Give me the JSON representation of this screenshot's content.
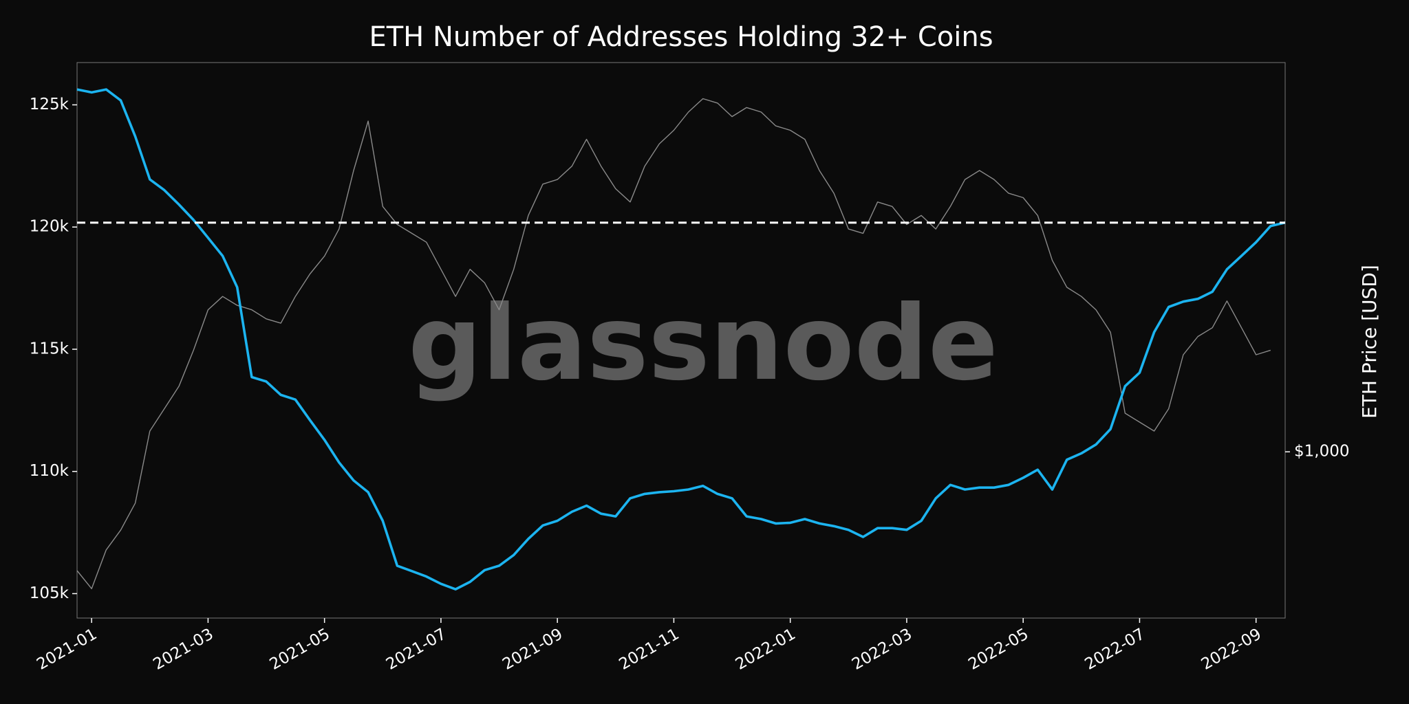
{
  "chart_data": {
    "type": "line",
    "title": "ETH Number of Addresses Holding 32+ Coins",
    "watermark": "glassnode",
    "y2_label": "ETH Price [USD]",
    "categories": [
      null,
      "2021-01",
      null,
      null,
      null,
      null,
      null,
      null,
      null,
      "2021-03",
      null,
      null,
      null,
      null,
      null,
      null,
      null,
      "2021-05",
      null,
      null,
      null,
      null,
      null,
      null,
      null,
      "2021-07",
      null,
      null,
      null,
      null,
      null,
      null,
      null,
      "2021-09",
      null,
      null,
      null,
      null,
      null,
      null,
      null,
      "2021-11",
      null,
      null,
      null,
      null,
      null,
      null,
      null,
      "2022-01",
      null,
      null,
      null,
      null,
      null,
      null,
      null,
      "2022-03",
      null,
      null,
      null,
      null,
      null,
      null,
      null,
      "2022-05",
      null,
      null,
      null,
      null,
      null,
      null,
      null,
      "2022-07",
      null,
      null,
      null,
      null,
      null,
      null,
      null,
      "2022-09",
      null,
      null
    ],
    "series": [
      {
        "name": "Addresses",
        "color": "#1cb4f0",
        "values": [
          125630,
          125510,
          125630,
          125180,
          123710,
          121950,
          121510,
          120920,
          120290,
          119560,
          118820,
          117540,
          113860,
          113680,
          113130,
          112940,
          112100,
          111290,
          110370,
          109630,
          109150,
          107980,
          106140,
          105920,
          105700,
          105400,
          105180,
          105480,
          105960,
          106140,
          106580,
          107240,
          107790,
          107980,
          108350,
          108600,
          108270,
          108160,
          108900,
          109080,
          109150,
          109190,
          109260,
          109410,
          109080,
          108900,
          108160,
          108050,
          107870,
          107900,
          108050,
          107870,
          107760,
          107610,
          107320,
          107680,
          107680,
          107610,
          107980,
          108900,
          109450,
          109260,
          109340,
          109340,
          109450,
          109740,
          110070,
          109260,
          110480,
          110740,
          111100,
          111730,
          113490,
          114040,
          115700,
          116730,
          116950,
          117060,
          117350,
          118270,
          118820,
          119380,
          120040,
          120180
        ]
      },
      {
        "name": "ETH Price",
        "color": "#8a8a8a",
        "axis": "y2",
        "values": [
          598,
          553,
          654,
          713,
          801,
          1094,
          1205,
          1328,
          1552,
          1849,
          1959,
          1885,
          1849,
          1778,
          1745,
          1959,
          2159,
          2333,
          2623,
          3378,
          4184,
          2892,
          2675,
          2574,
          2477,
          2203,
          1959,
          2203,
          2078,
          1849,
          2203,
          2781,
          3185,
          3249,
          3442,
          3867,
          3442,
          3122,
          2948,
          3442,
          3792,
          4021,
          4351,
          4610,
          4524,
          4266,
          4437,
          4351,
          4098,
          4021,
          3867,
          3378,
          3062,
          2623,
          2574,
          2948,
          2892,
          2675,
          2781,
          2623,
          2892,
          3249,
          3378,
          3249,
          3062,
          3004,
          2781,
          2290,
          2038,
          1959,
          1849,
          1678,
          1182,
          1137,
          1094,
          1205,
          1522,
          1647,
          1711,
          1921,
          1711,
          1522,
          1552,
          null
        ]
      }
    ],
    "hline": 120180,
    "ylim": [
      104000,
      126730
    ],
    "yticks": [
      {
        "value": 105000,
        "label": "105k"
      },
      {
        "value": 110000,
        "label": "110k"
      },
      {
        "value": 115000,
        "label": "115k"
      },
      {
        "value": 120000,
        "label": "120k"
      },
      {
        "value": 125000,
        "label": "125k"
      }
    ],
    "y2lim": [
      487,
      5390
    ],
    "y2log": true,
    "y2ticks": [
      {
        "value": 1000,
        "label": "$1,000"
      }
    ],
    "grid": false
  }
}
